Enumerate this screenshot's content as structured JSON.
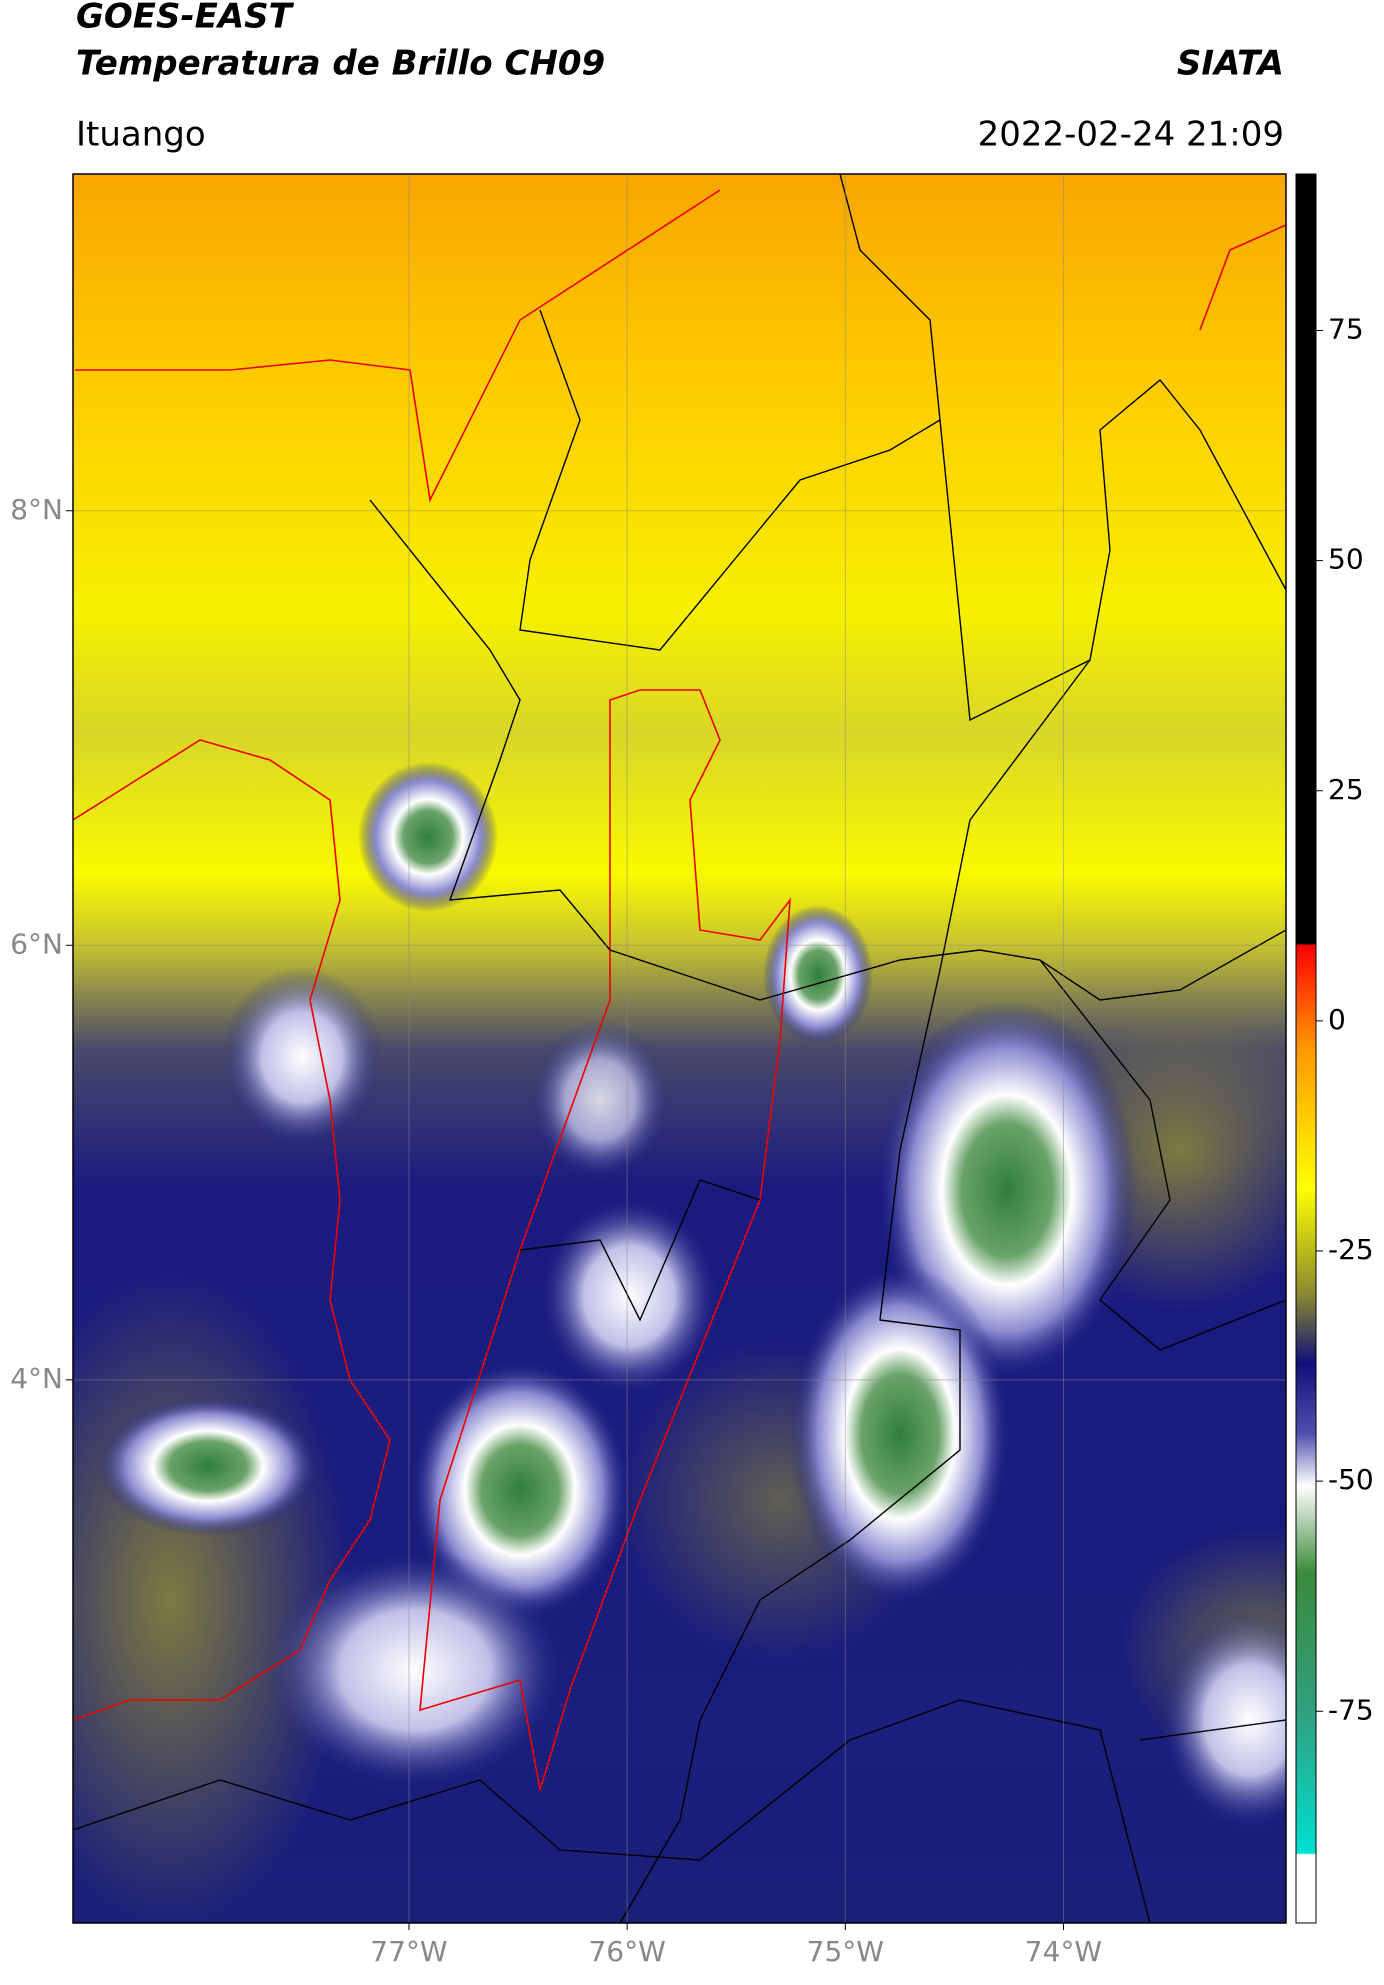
{
  "header": {
    "title": "GOES-EAST",
    "subtitle": "Temperatura de Brillo CH09",
    "brand": "SIATA",
    "region": "Ituango",
    "timestamp": "2022-02-24 21:09"
  },
  "map": {
    "xlim": [
      -78.54,
      -72.98
    ],
    "ylim": [
      1.5,
      9.55
    ],
    "xticks": [
      {
        "value": -77,
        "label": "77°W"
      },
      {
        "value": -76,
        "label": "76°W"
      },
      {
        "value": -75,
        "label": "75°W"
      },
      {
        "value": -74,
        "label": "74°W"
      }
    ],
    "yticks": [
      {
        "value": 8,
        "label": "8°N"
      },
      {
        "value": 6,
        "label": "6°N"
      },
      {
        "value": 4,
        "label": "4°N"
      }
    ]
  },
  "colorbar": {
    "ylim": [
      -98,
      92
    ],
    "yticks": [
      75,
      50,
      25,
      0,
      -25,
      -50,
      -75
    ]
  }
}
